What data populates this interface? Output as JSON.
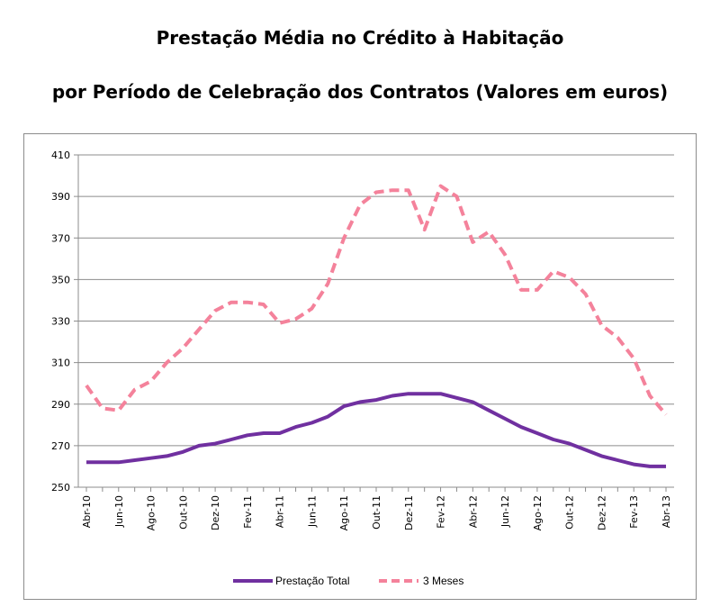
{
  "title_line1": "Prestação Média no Crédito à Habitação",
  "title_line2": "por Período de Celebração dos Contratos (Valores em euros)",
  "chart_data": {
    "type": "line",
    "x": [
      "Abr-10",
      "Mai-10",
      "Jun-10",
      "Jul-10",
      "Ago-10",
      "Set-10",
      "Out-10",
      "Nov-10",
      "Dez-10",
      "Jan-11",
      "Fev-11",
      "Mar-11",
      "Abr-11",
      "Mai-11",
      "Jun-11",
      "Jul-11",
      "Ago-11",
      "Set-11",
      "Out-11",
      "Nov-11",
      "Dez-11",
      "Jan-12",
      "Fev-12",
      "Mar-12",
      "Abr-12",
      "Mai-12",
      "Jun-12",
      "Jul-12",
      "Ago-12",
      "Set-12",
      "Out-12",
      "Nov-12",
      "Dez-12",
      "Jan-13",
      "Fev-13",
      "Mar-13",
      "Abr-13"
    ],
    "x_tick_labels": [
      "Abr-10",
      "Jun-10",
      "Ago-10",
      "Out-10",
      "Dez-10",
      "Fev-11",
      "Abr-11",
      "Jun-11",
      "Ago-11",
      "Out-11",
      "Dez-11",
      "Fev-12",
      "Abr-12",
      "Jun-12",
      "Ago-12",
      "Out-12",
      "Dez-12",
      "Fev-13",
      "Abr-13"
    ],
    "series": [
      {
        "name": "Prestação Total",
        "color": "#7030a0",
        "dash": "solid",
        "values": [
          262,
          262,
          262,
          263,
          264,
          265,
          267,
          270,
          271,
          273,
          275,
          276,
          276,
          279,
          281,
          284,
          289,
          291,
          292,
          294,
          295,
          295,
          295,
          293,
          291,
          287,
          283,
          279,
          276,
          273,
          271,
          268,
          265,
          263,
          261,
          260,
          260
        ]
      },
      {
        "name": "3 Meses",
        "color": "#f4829b",
        "dash": "dashed",
        "values": [
          299,
          288,
          287,
          297,
          301,
          310,
          317,
          326,
          335,
          339,
          339,
          338,
          329,
          331,
          336,
          348,
          370,
          386,
          392,
          393,
          393,
          374,
          395,
          390,
          368,
          373,
          362,
          345,
          345,
          354,
          351,
          343,
          328,
          322,
          312,
          294,
          285
        ]
      }
    ],
    "ylim": [
      250,
      410
    ],
    "yticks": [
      250,
      270,
      290,
      310,
      330,
      350,
      370,
      390,
      410
    ],
    "grid": true,
    "legend": "bottom"
  }
}
